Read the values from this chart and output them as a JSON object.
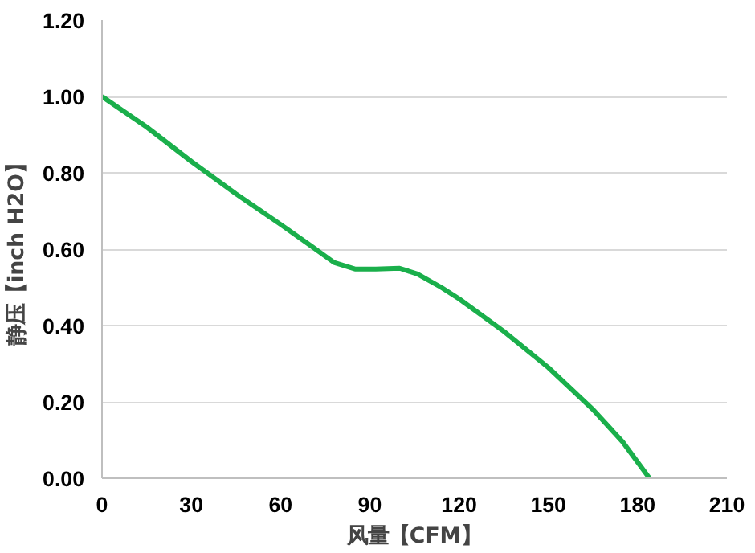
{
  "chart_data": {
    "type": "line",
    "xlabel": "风量【CFM】",
    "ylabel": "静压【inch H2O】",
    "xlim": [
      0,
      210
    ],
    "xticks": [
      0,
      30,
      60,
      90,
      120,
      150,
      180,
      210
    ],
    "ylim": [
      0,
      1.2
    ],
    "yticks": [
      {
        "value": 0,
        "label": "0.00"
      },
      {
        "value": 0.2,
        "label": "0.20"
      },
      {
        "value": 0.4,
        "label": "0.40"
      },
      {
        "value": 0.6,
        "label": "0.60"
      },
      {
        "value": 0.8,
        "label": "0.80"
      },
      {
        "value": 1.0,
        "label": "1.00"
      },
      {
        "value": 1.2,
        "label": "1.20"
      }
    ],
    "grid": "y",
    "marker": "none",
    "line_style": "solid",
    "x": [
      0,
      15,
      30,
      45,
      60,
      70,
      78,
      85,
      92,
      100,
      106,
      114,
      120,
      135,
      150,
      165,
      175,
      184
    ],
    "series": [
      {
        "color": "#1aaf4b",
        "values": [
          1.0,
          0.92,
          0.83,
          0.745,
          0.665,
          0.61,
          0.565,
          0.548,
          0.548,
          0.55,
          0.535,
          0.5,
          0.47,
          0.385,
          0.29,
          0.18,
          0.095,
          0.0
        ]
      }
    ]
  }
}
